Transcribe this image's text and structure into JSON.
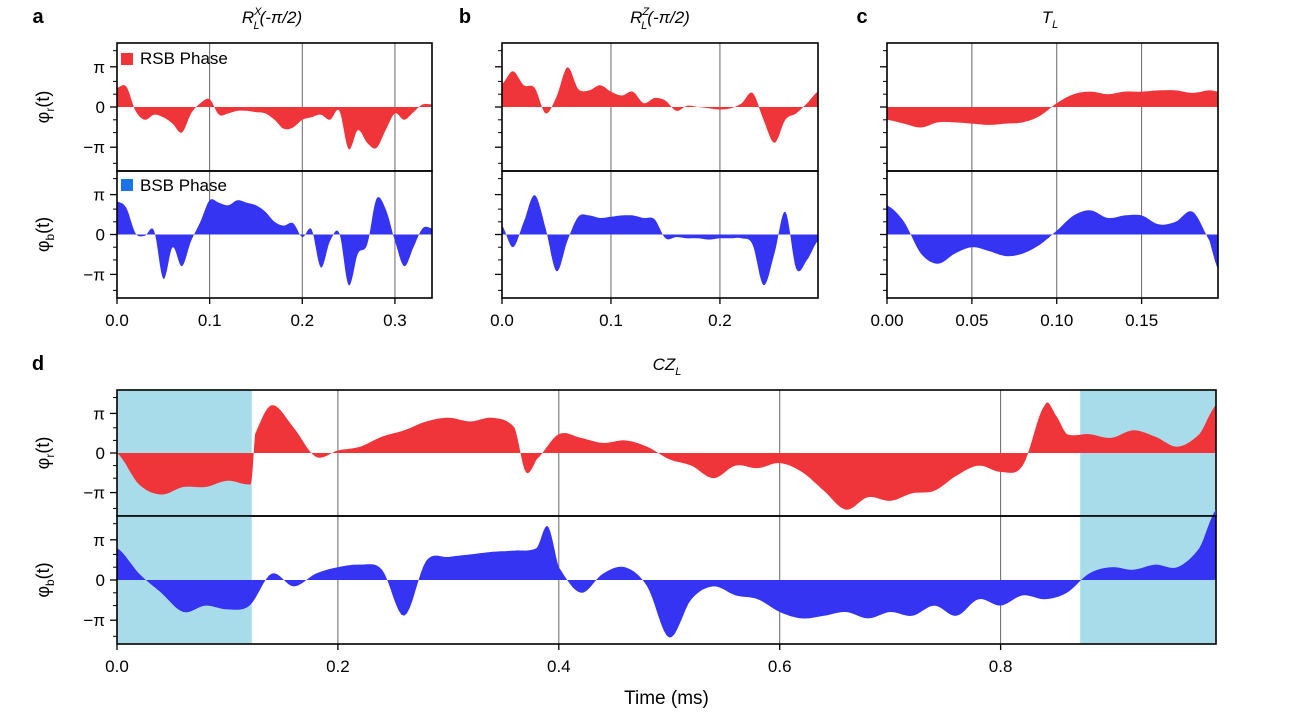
{
  "panel_labels": [
    "a",
    "b",
    "c",
    "d"
  ],
  "y_labels": {
    "red": "φr(t)",
    "blue": "φb(t)"
  },
  "legend": {
    "rsb": "RSB Phase",
    "bsb": "BSB Phase"
  },
  "x_axis_label": "Time (ms)",
  "colors": {
    "red": "#f0353a",
    "blue": "#3434f2",
    "highlight": "#a9dcea",
    "grid": "#666666"
  },
  "chart_data": [
    {
      "id": "a",
      "type": "area",
      "title": "R_L^X(-π/2)",
      "xlim": [
        0,
        0.34
      ],
      "ylim": [
        -5.0,
        5.0
      ],
      "grid": "vertical",
      "x_ticks": [
        0.0,
        0.1,
        0.2,
        0.3
      ],
      "x_tick_labels": [
        "0.0",
        "0.1",
        "0.2",
        "0.3"
      ],
      "y_tick_labels": [
        "π",
        "0",
        "−π"
      ],
      "legend": [
        "RSB Phase",
        "BSB Phase"
      ],
      "legend_placement": "top-left",
      "series": [
        {
          "name": "RSB Phase",
          "x": [
            0,
            0.01,
            0.02,
            0.03,
            0.04,
            0.05,
            0.06,
            0.07,
            0.08,
            0.09,
            0.1,
            0.11,
            0.12,
            0.13,
            0.14,
            0.15,
            0.16,
            0.17,
            0.18,
            0.19,
            0.2,
            0.21,
            0.22,
            0.23,
            0.24,
            0.25,
            0.26,
            0.27,
            0.28,
            0.29,
            0.3,
            0.31,
            0.32,
            0.33,
            0.34
          ],
          "y": [
            1.5,
            1.6,
            -0.3,
            -1.0,
            -0.6,
            -0.8,
            -1.3,
            -2.0,
            -0.5,
            0.3,
            0.6,
            -0.6,
            -0.5,
            -0.3,
            -0.3,
            -0.4,
            -0.5,
            -1.0,
            -1.7,
            -1.6,
            -1.0,
            -0.8,
            -0.6,
            -1.0,
            -0.3,
            -3.3,
            -1.8,
            -2.8,
            -3.2,
            -1.8,
            -0.5,
            -1.0,
            -0.4,
            0.2,
            0.2
          ]
        },
        {
          "name": "BSB Phase",
          "x": [
            0,
            0.01,
            0.02,
            0.03,
            0.04,
            0.05,
            0.06,
            0.07,
            0.08,
            0.09,
            0.1,
            0.11,
            0.12,
            0.13,
            0.14,
            0.15,
            0.16,
            0.17,
            0.18,
            0.19,
            0.2,
            0.21,
            0.22,
            0.23,
            0.24,
            0.25,
            0.26,
            0.27,
            0.28,
            0.29,
            0.3,
            0.31,
            0.32,
            0.33,
            0.34
          ],
          "y": [
            2.6,
            2.1,
            0.1,
            -0.1,
            0.3,
            -3.5,
            -1.0,
            -2.5,
            -0.5,
            1.0,
            2.7,
            2.5,
            2.3,
            2.7,
            2.5,
            2.3,
            1.8,
            1.0,
            0.7,
            0.9,
            -0.2,
            0.4,
            -2.6,
            -0.5,
            0.1,
            -4.0,
            -1.5,
            -0.8,
            2.8,
            2.0,
            -0.5,
            -2.5,
            -1.0,
            0.5,
            0.5
          ]
        }
      ]
    },
    {
      "id": "b",
      "type": "area",
      "title": "R_L^Z(-π/2)",
      "xlim": [
        0,
        0.29
      ],
      "ylim": [
        -5.0,
        5.0
      ],
      "grid": "vertical",
      "x_ticks": [
        0.0,
        0.1,
        0.2
      ],
      "x_tick_labels": [
        "0.0",
        "0.1",
        "0.2"
      ],
      "y_tick_labels": [],
      "series": [
        {
          "name": "RSB Phase",
          "x": [
            0,
            0.01,
            0.02,
            0.03,
            0.04,
            0.05,
            0.06,
            0.07,
            0.08,
            0.09,
            0.1,
            0.11,
            0.12,
            0.13,
            0.14,
            0.15,
            0.16,
            0.17,
            0.18,
            0.19,
            0.2,
            0.21,
            0.22,
            0.23,
            0.24,
            0.25,
            0.26,
            0.27,
            0.28,
            0.29
          ],
          "y": [
            1.8,
            2.8,
            1.7,
            1.5,
            -0.5,
            0.8,
            3.1,
            1.4,
            1.3,
            1.7,
            1.2,
            0.9,
            1.2,
            0.3,
            0.7,
            0.5,
            -0.3,
            0.1,
            0.0,
            -0.1,
            -0.2,
            -0.1,
            0.3,
            1.1,
            -1.0,
            -2.8,
            -1.0,
            -0.5,
            0.3,
            1.2
          ]
        },
        {
          "name": "BSB Phase",
          "x": [
            0,
            0.01,
            0.02,
            0.03,
            0.04,
            0.05,
            0.06,
            0.07,
            0.08,
            0.09,
            0.1,
            0.11,
            0.12,
            0.13,
            0.14,
            0.15,
            0.16,
            0.17,
            0.18,
            0.19,
            0.2,
            0.21,
            0.22,
            0.23,
            0.24,
            0.25,
            0.26,
            0.27,
            0.28,
            0.29
          ],
          "y": [
            0.7,
            -1.0,
            1.0,
            3.1,
            0.5,
            -2.9,
            -0.5,
            1.4,
            1.5,
            1.3,
            1.4,
            1.5,
            1.5,
            1.3,
            1.2,
            -0.3,
            -0.2,
            -0.3,
            -0.3,
            -0.4,
            -0.3,
            -0.3,
            -0.3,
            -0.8,
            -4.0,
            -1.5,
            1.8,
            -2.7,
            -2.0,
            -0.5
          ]
        }
      ]
    },
    {
      "id": "c",
      "type": "area",
      "title": "T_L",
      "xlim": [
        0,
        0.195
      ],
      "ylim": [
        -5.0,
        5.0
      ],
      "grid": "vertical",
      "x_ticks": [
        0.0,
        0.05,
        0.1,
        0.15
      ],
      "x_tick_labels": [
        "0.00",
        "0.05",
        "0.10",
        "0.15"
      ],
      "y_tick_labels": [],
      "series": [
        {
          "name": "RSB Phase",
          "x": [
            0,
            0.01,
            0.02,
            0.03,
            0.04,
            0.05,
            0.06,
            0.07,
            0.08,
            0.09,
            0.1,
            0.11,
            0.12,
            0.13,
            0.14,
            0.15,
            0.16,
            0.17,
            0.18,
            0.19,
            0.195
          ],
          "y": [
            -1.0,
            -1.3,
            -1.6,
            -1.2,
            -1.2,
            -1.3,
            -1.4,
            -1.3,
            -1.2,
            -0.7,
            0.3,
            1.0,
            1.2,
            1.0,
            1.2,
            1.2,
            1.3,
            1.3,
            1.1,
            1.3,
            1.2
          ]
        },
        {
          "name": "BSB Phase",
          "x": [
            0,
            0.01,
            0.02,
            0.03,
            0.04,
            0.05,
            0.06,
            0.07,
            0.08,
            0.09,
            0.1,
            0.11,
            0.12,
            0.13,
            0.14,
            0.15,
            0.16,
            0.17,
            0.18,
            0.19,
            0.195
          ],
          "y": [
            2.3,
            1.0,
            -1.5,
            -2.3,
            -1.5,
            -1.0,
            -1.3,
            -1.7,
            -1.5,
            -0.8,
            0.3,
            1.5,
            1.9,
            1.3,
            1.5,
            1.5,
            0.8,
            1.0,
            1.8,
            -0.5,
            -2.7
          ]
        }
      ]
    },
    {
      "id": "d",
      "type": "area",
      "title": "CZ_L",
      "xlim": [
        0,
        0.995
      ],
      "ylim": [
        -5.0,
        5.0
      ],
      "grid": "vertical",
      "x_ticks": [
        0.0,
        0.2,
        0.4,
        0.6,
        0.8
      ],
      "x_tick_labels": [
        "0.0",
        "0.2",
        "0.4",
        "0.6",
        "0.8"
      ],
      "xlabel": "Time (ms)",
      "y_tick_labels": [
        "π",
        "0",
        "−π"
      ],
      "highlight_ranges": [
        [
          0,
          0.122
        ],
        [
          0.872,
          0.995
        ]
      ],
      "series": [
        {
          "name": "RSB Phase",
          "x": [
            0,
            0.02,
            0.04,
            0.06,
            0.08,
            0.1,
            0.12,
            0.122,
            0.125,
            0.14,
            0.16,
            0.18,
            0.2,
            0.22,
            0.24,
            0.26,
            0.28,
            0.3,
            0.32,
            0.34,
            0.36,
            0.37,
            0.38,
            0.4,
            0.42,
            0.44,
            0.46,
            0.48,
            0.5,
            0.52,
            0.54,
            0.56,
            0.58,
            0.6,
            0.62,
            0.64,
            0.66,
            0.68,
            0.7,
            0.72,
            0.74,
            0.76,
            0.78,
            0.8,
            0.82,
            0.84,
            0.85,
            0.86,
            0.88,
            0.9,
            0.92,
            0.94,
            0.96,
            0.98,
            0.995
          ],
          "y": [
            0.0,
            -2.5,
            -3.3,
            -2.7,
            -2.7,
            -2.2,
            -2.5,
            -2.0,
            1.5,
            3.8,
            2.0,
            -0.3,
            0.2,
            0.5,
            1.3,
            1.8,
            2.5,
            2.8,
            2.5,
            2.8,
            2.0,
            -1.5,
            -0.5,
            1.5,
            1.2,
            0.8,
            1.0,
            0.5,
            -0.5,
            -1.0,
            -2.0,
            -1.0,
            -1.2,
            -0.8,
            -1.5,
            -3.0,
            -4.5,
            -3.5,
            -3.8,
            -3.2,
            -3.0,
            -1.8,
            -1.0,
            -1.5,
            -1.0,
            3.8,
            3.0,
            1.5,
            1.5,
            1.2,
            1.8,
            1.3,
            0.5,
            1.5,
            3.8
          ]
        },
        {
          "name": "BSB Phase",
          "x": [
            0,
            0.02,
            0.04,
            0.06,
            0.08,
            0.1,
            0.12,
            0.14,
            0.16,
            0.18,
            0.2,
            0.22,
            0.24,
            0.26,
            0.28,
            0.3,
            0.32,
            0.34,
            0.36,
            0.38,
            0.39,
            0.4,
            0.42,
            0.44,
            0.46,
            0.48,
            0.5,
            0.52,
            0.54,
            0.56,
            0.58,
            0.6,
            0.62,
            0.64,
            0.66,
            0.68,
            0.7,
            0.72,
            0.74,
            0.76,
            0.78,
            0.8,
            0.82,
            0.84,
            0.86,
            0.88,
            0.9,
            0.92,
            0.94,
            0.96,
            0.98,
            0.995
          ],
          "y": [
            2.5,
            0.5,
            -1.0,
            -2.5,
            -2.0,
            -2.3,
            -2.0,
            0.5,
            -0.5,
            0.5,
            1.0,
            1.2,
            0.8,
            -2.8,
            1.5,
            1.8,
            2.0,
            2.2,
            2.3,
            2.5,
            4.2,
            1.0,
            -1.0,
            0.5,
            1.0,
            -0.5,
            -4.5,
            -1.5,
            -0.5,
            -1.2,
            -1.5,
            -2.5,
            -3.0,
            -2.8,
            -2.5,
            -3.0,
            -2.5,
            -2.8,
            -2.0,
            -2.8,
            -1.5,
            -2.0,
            -1.2,
            -1.5,
            -1.0,
            0.5,
            1.0,
            0.8,
            1.2,
            1.0,
            2.5,
            5.5
          ]
        }
      ]
    }
  ]
}
